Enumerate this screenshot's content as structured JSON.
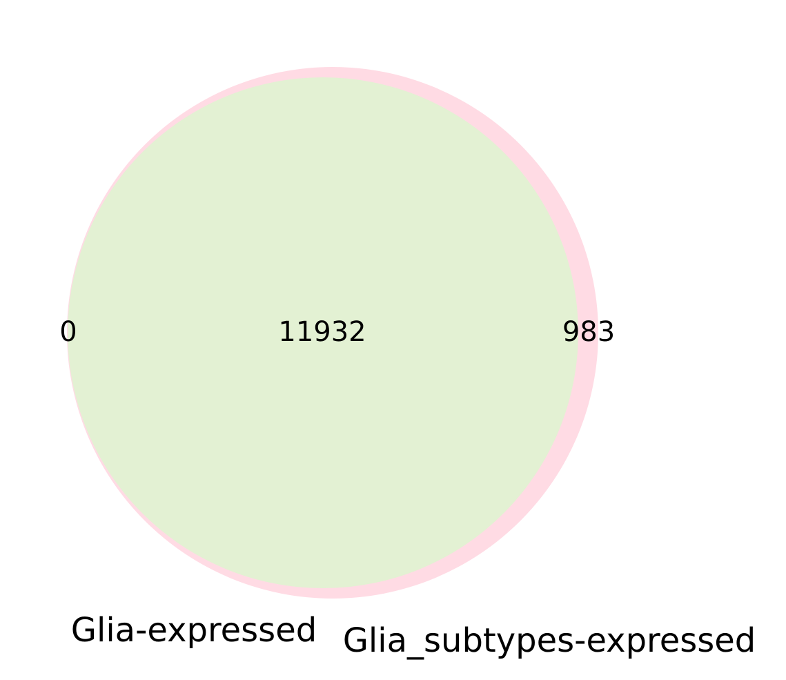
{
  "diagram": {
    "type": "venn2",
    "sets": [
      {
        "name": "Glia-expressed",
        "only_count": "0",
        "color": "#e2f0d4"
      },
      {
        "name": "Glia_subtypes-expressed",
        "only_count": "983",
        "color": "#ffdbe4"
      }
    ],
    "intersection_count": "11932",
    "intersection_color": "#e3f1d3"
  }
}
